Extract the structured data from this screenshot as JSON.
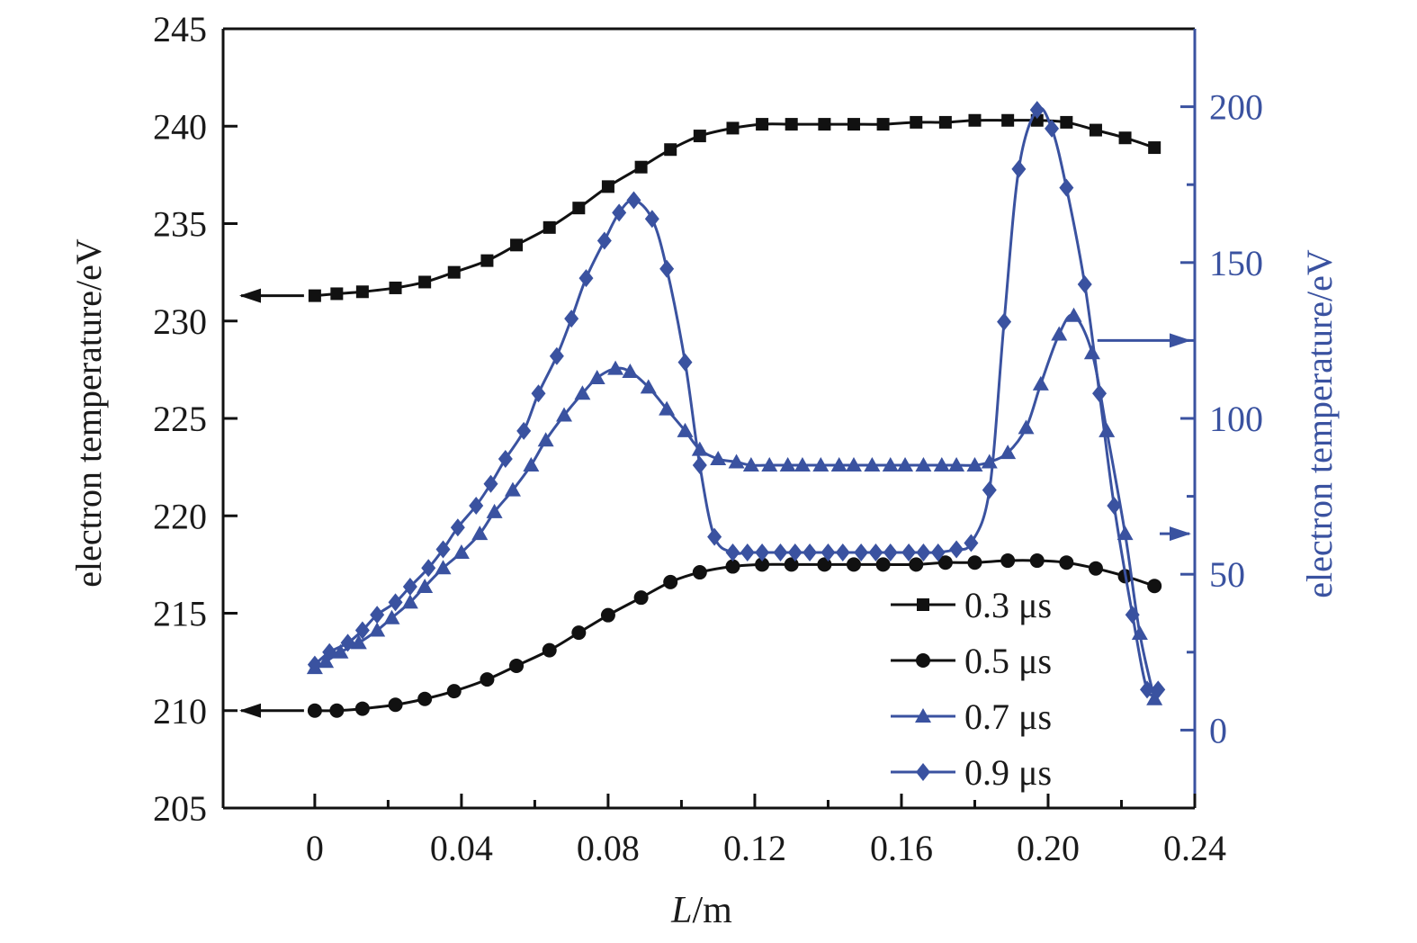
{
  "chart_data": {
    "type": "line",
    "xlabel": "L/m",
    "xlabel_italic_part": "L",
    "xlabel_rest": "/m",
    "ylabel_left": "electron temperature/eV",
    "ylabel_right": "electron temperature/eV",
    "xlim": [
      -0.025,
      0.24
    ],
    "ylim_left": [
      205,
      245
    ],
    "ylim_right": [
      -25,
      225
    ],
    "x_ticks": [
      "0",
      "0.04",
      "0.08",
      "0.12",
      "0.16",
      "0.20",
      "0.24"
    ],
    "x_tick_values": [
      0,
      0.04,
      0.08,
      0.12,
      0.16,
      0.2,
      0.24
    ],
    "y_left_ticks": [
      "205",
      "210",
      "215",
      "220",
      "225",
      "230",
      "235",
      "240",
      "245"
    ],
    "y_left_tick_values": [
      205,
      210,
      215,
      220,
      225,
      230,
      235,
      240,
      245
    ],
    "y_right_ticks": [
      "0",
      "50",
      "100",
      "150",
      "200"
    ],
    "y_right_tick_values": [
      0,
      50,
      100,
      150,
      200
    ],
    "grid": false,
    "legend_position": "lower-right",
    "colors": {
      "black": "#111111",
      "blue": "#3a52a0"
    },
    "series": [
      {
        "name": "0.3 μs",
        "axis": "left",
        "color": "#111111",
        "marker": "square",
        "x": [
          0,
          0.006,
          0.013,
          0.022,
          0.03,
          0.038,
          0.047,
          0.055,
          0.064,
          0.072,
          0.08,
          0.089,
          0.097,
          0.105,
          0.114,
          0.122,
          0.13,
          0.139,
          0.147,
          0.155,
          0.164,
          0.172,
          0.18,
          0.189,
          0.197,
          0.205,
          0.213,
          0.221,
          0.229
        ],
        "values": [
          231.3,
          231.4,
          231.5,
          231.7,
          232.0,
          232.5,
          233.1,
          233.9,
          234.8,
          235.8,
          236.9,
          237.9,
          238.8,
          239.5,
          239.9,
          240.1,
          240.1,
          240.1,
          240.1,
          240.1,
          240.2,
          240.2,
          240.3,
          240.3,
          240.3,
          240.2,
          239.8,
          239.4,
          238.9
        ]
      },
      {
        "name": "0.5 μs",
        "axis": "left",
        "color": "#111111",
        "marker": "circle",
        "x": [
          0,
          0.006,
          0.013,
          0.022,
          0.03,
          0.038,
          0.047,
          0.055,
          0.064,
          0.072,
          0.08,
          0.089,
          0.097,
          0.105,
          0.114,
          0.122,
          0.13,
          0.139,
          0.147,
          0.155,
          0.164,
          0.172,
          0.18,
          0.189,
          0.197,
          0.205,
          0.213,
          0.221,
          0.229
        ],
        "values": [
          210.0,
          210.0,
          210.1,
          210.3,
          210.6,
          211.0,
          211.6,
          212.3,
          213.1,
          214.0,
          214.9,
          215.8,
          216.6,
          217.1,
          217.4,
          217.5,
          217.5,
          217.5,
          217.5,
          217.5,
          217.5,
          217.6,
          217.6,
          217.7,
          217.7,
          217.6,
          217.3,
          216.9,
          216.4
        ]
      },
      {
        "name": "0.7 μs",
        "axis": "right",
        "color": "#3a52a0",
        "marker": "triangle",
        "x": [
          0,
          0.003,
          0.007,
          0.012,
          0.017,
          0.021,
          0.026,
          0.03,
          0.035,
          0.04,
          0.045,
          0.049,
          0.054,
          0.059,
          0.063,
          0.068,
          0.073,
          0.077,
          0.082,
          0.086,
          0.091,
          0.096,
          0.101,
          0.105,
          0.11,
          0.115,
          0.119,
          0.124,
          0.129,
          0.133,
          0.138,
          0.143,
          0.147,
          0.152,
          0.157,
          0.161,
          0.166,
          0.171,
          0.175,
          0.18,
          0.184,
          0.189,
          0.194,
          0.198,
          0.203,
          0.207,
          0.212,
          0.216,
          0.221,
          0.225,
          0.229
        ],
        "values": [
          20,
          22,
          25,
          28,
          32,
          36,
          41,
          46,
          52,
          57,
          63,
          70,
          77,
          85,
          93,
          101,
          108,
          113,
          116,
          115,
          110,
          103,
          96,
          90,
          87,
          86,
          85,
          85,
          85,
          85,
          85,
          85,
          85,
          85,
          85,
          85,
          85,
          85,
          85,
          85,
          86,
          89,
          97,
          111,
          127,
          133,
          121,
          96,
          63,
          31,
          10
        ]
      },
      {
        "name": "0.9 μs",
        "axis": "right",
        "color": "#3a52a0",
        "marker": "diamond",
        "x": [
          0,
          0.004,
          0.009,
          0.013,
          0.017,
          0.022,
          0.026,
          0.031,
          0.035,
          0.039,
          0.044,
          0.048,
          0.052,
          0.057,
          0.061,
          0.066,
          0.07,
          0.074,
          0.079,
          0.083,
          0.087,
          0.092,
          0.096,
          0.101,
          0.105,
          0.109,
          0.114,
          0.118,
          0.122,
          0.127,
          0.131,
          0.135,
          0.14,
          0.144,
          0.149,
          0.153,
          0.157,
          0.162,
          0.166,
          0.17,
          0.175,
          0.179,
          0.184,
          0.188,
          0.192,
          0.197,
          0.201,
          0.205,
          0.21,
          0.214,
          0.218,
          0.223,
          0.227,
          0.23
        ],
        "values": [
          21,
          25,
          28,
          32,
          37,
          41,
          46,
          52,
          58,
          65,
          72,
          79,
          87,
          96,
          108,
          120,
          132,
          145,
          157,
          166,
          170,
          164,
          148,
          118,
          85,
          62,
          57,
          57,
          57,
          57,
          57,
          57,
          57,
          57,
          57,
          57,
          57,
          57,
          57,
          57,
          58,
          60,
          77,
          131,
          180,
          199,
          193,
          174,
          143,
          108,
          72,
          37,
          13,
          13
        ]
      }
    ],
    "annotations": [
      {
        "type": "arrow",
        "direction": "left",
        "axis": "left",
        "y": 231.3,
        "x_from": 0,
        "x_to": -0.025,
        "color": "#111111",
        "target_series": "0.3 μs"
      },
      {
        "type": "arrow",
        "direction": "left",
        "axis": "left",
        "y": 210.0,
        "x_from": 0,
        "x_to": -0.025,
        "color": "#111111",
        "target_series": "0.5 μs"
      },
      {
        "type": "arrow",
        "direction": "right",
        "axis": "right",
        "y": 125,
        "x_from": 0.21,
        "x_to": 0.24,
        "color": "#3a52a0",
        "target_series": "0.9 μs"
      },
      {
        "type": "arrow",
        "direction": "right",
        "axis": "right",
        "y": 63,
        "x_from": 0.227,
        "x_to": 0.24,
        "color": "#3a52a0",
        "target_series": "0.7 μs"
      }
    ]
  }
}
